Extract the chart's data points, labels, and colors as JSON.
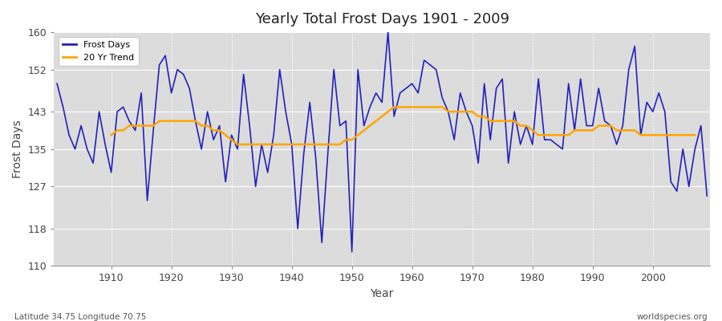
{
  "title": "Yearly Total Frost Days 1901 - 2009",
  "xlabel": "Year",
  "ylabel": "Frost Days",
  "bottom_left_label": "Latitude 34.75 Longitude 70.75",
  "bottom_right_label": "worldspecies.org",
  "ylim": [
    110,
    160
  ],
  "yticks": [
    110,
    118,
    127,
    135,
    143,
    152,
    160
  ],
  "xlim": [
    1901,
    2009
  ],
  "fig_bg_color": "#ffffff",
  "plot_bg_color": "#dcdcdc",
  "line_color": "#2222bb",
  "trend_color": "#ffa500",
  "years": [
    1901,
    1902,
    1903,
    1904,
    1905,
    1906,
    1907,
    1908,
    1909,
    1910,
    1911,
    1912,
    1913,
    1914,
    1915,
    1916,
    1917,
    1918,
    1919,
    1920,
    1921,
    1922,
    1923,
    1924,
    1925,
    1926,
    1927,
    1928,
    1929,
    1930,
    1931,
    1932,
    1933,
    1934,
    1935,
    1936,
    1937,
    1938,
    1939,
    1940,
    1941,
    1942,
    1943,
    1944,
    1945,
    1946,
    1947,
    1948,
    1949,
    1950,
    1951,
    1952,
    1953,
    1954,
    1955,
    1956,
    1957,
    1958,
    1959,
    1960,
    1961,
    1962,
    1963,
    1964,
    1965,
    1966,
    1967,
    1968,
    1969,
    1970,
    1971,
    1972,
    1973,
    1974,
    1975,
    1976,
    1977,
    1978,
    1979,
    1980,
    1981,
    1982,
    1983,
    1984,
    1985,
    1986,
    1987,
    1988,
    1989,
    1990,
    1991,
    1992,
    1993,
    1994,
    1995,
    1996,
    1997,
    1998,
    1999,
    2000,
    2001,
    2002,
    2003,
    2004,
    2005,
    2006,
    2007,
    2008,
    2009
  ],
  "frost_days": [
    149,
    144,
    138,
    135,
    140,
    135,
    132,
    143,
    136,
    130,
    143,
    144,
    141,
    139,
    147,
    124,
    139,
    153,
    155,
    147,
    152,
    151,
    148,
    141,
    135,
    143,
    137,
    140,
    128,
    138,
    135,
    151,
    140,
    127,
    136,
    130,
    138,
    152,
    143,
    136,
    118,
    134,
    145,
    133,
    115,
    134,
    152,
    140,
    141,
    113,
    152,
    140,
    144,
    147,
    145,
    160,
    142,
    147,
    148,
    149,
    147,
    154,
    153,
    152,
    146,
    143,
    137,
    147,
    143,
    140,
    132,
    149,
    137,
    148,
    150,
    132,
    143,
    136,
    140,
    136,
    150,
    137,
    137,
    136,
    135,
    149,
    139,
    150,
    140,
    140,
    148,
    141,
    140,
    136,
    140,
    152,
    157,
    138,
    145,
    143,
    147,
    143,
    128,
    126,
    135,
    127,
    135,
    140,
    125
  ],
  "trend_values": [
    null,
    null,
    null,
    null,
    null,
    null,
    null,
    null,
    null,
    138,
    139,
    139,
    140,
    140,
    140,
    140,
    140,
    141,
    141,
    141,
    141,
    141,
    141,
    141,
    140,
    140,
    139,
    139,
    138,
    137,
    136,
    136,
    136,
    136,
    136,
    136,
    136,
    136,
    136,
    136,
    136,
    136,
    136,
    136,
    136,
    136,
    136,
    136,
    137,
    137,
    138,
    139,
    140,
    141,
    142,
    143,
    144,
    144,
    144,
    144,
    144,
    144,
    144,
    144,
    144,
    143,
    143,
    143,
    143,
    143,
    142,
    142,
    141,
    141,
    141,
    141,
    141,
    140,
    140,
    139,
    138,
    138,
    138,
    138,
    138,
    138,
    139,
    139,
    139,
    139,
    140,
    140,
    140,
    139,
    139,
    139,
    139,
    138,
    138,
    138,
    138,
    138,
    138,
    138,
    138,
    138,
    138,
    null,
    null
  ]
}
